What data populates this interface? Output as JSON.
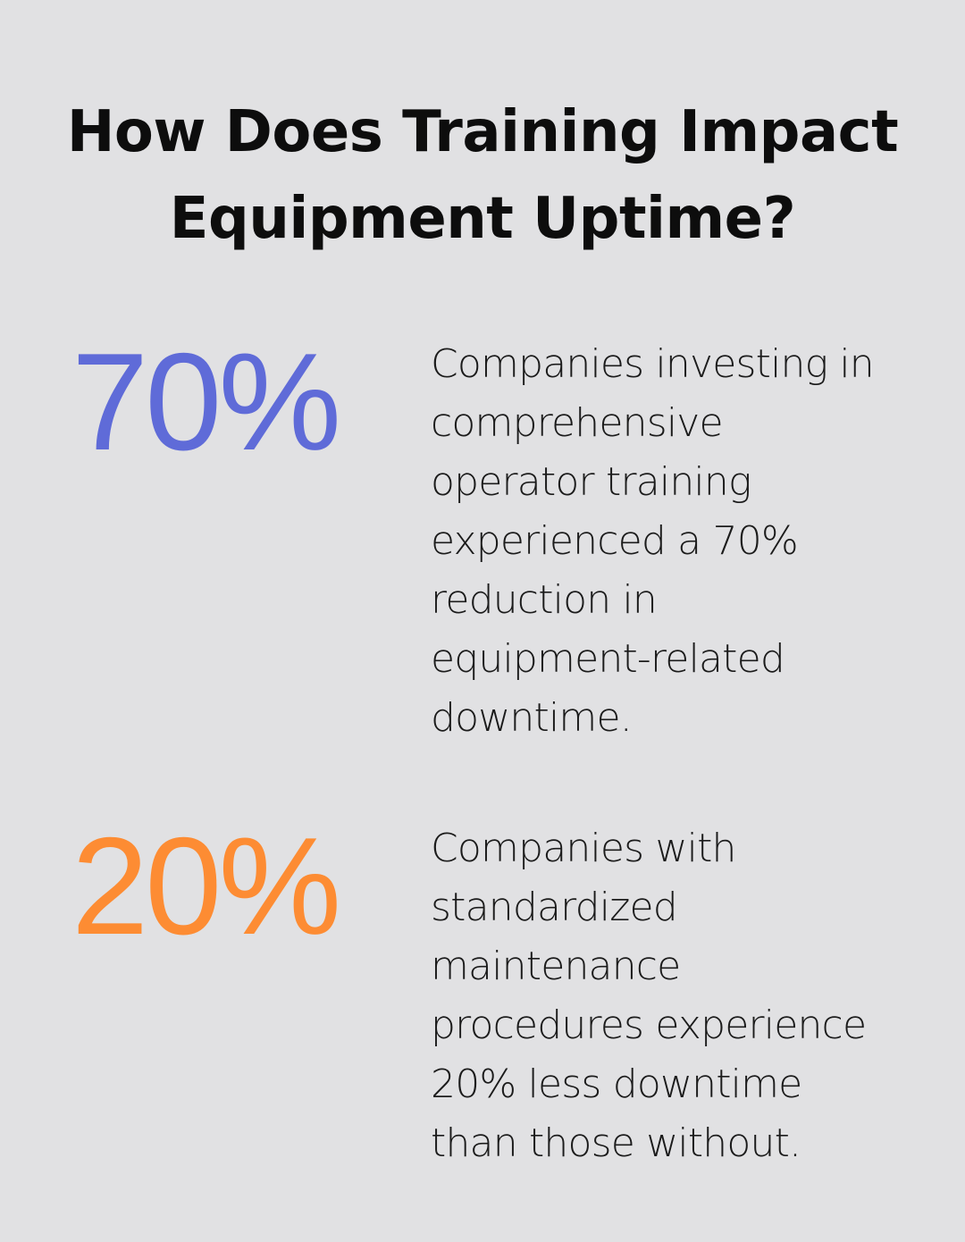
{
  "title": {
    "line1": "How Does Training Impact",
    "line2": "Equipment Uptime?"
  },
  "stats": [
    {
      "value": "70%",
      "color": "#5f6bd8",
      "description_lines": [
        "Companies investing in",
        "comprehensive",
        "operator training",
        "experienced a 70%",
        "reduction in",
        "equipment-related",
        "downtime."
      ]
    },
    {
      "value": "20%",
      "color": "#fd8c33",
      "description_lines": [
        "Companies with",
        "standardized",
        "maintenance",
        "procedures experience",
        "20% less downtime",
        "than those without."
      ]
    }
  ]
}
